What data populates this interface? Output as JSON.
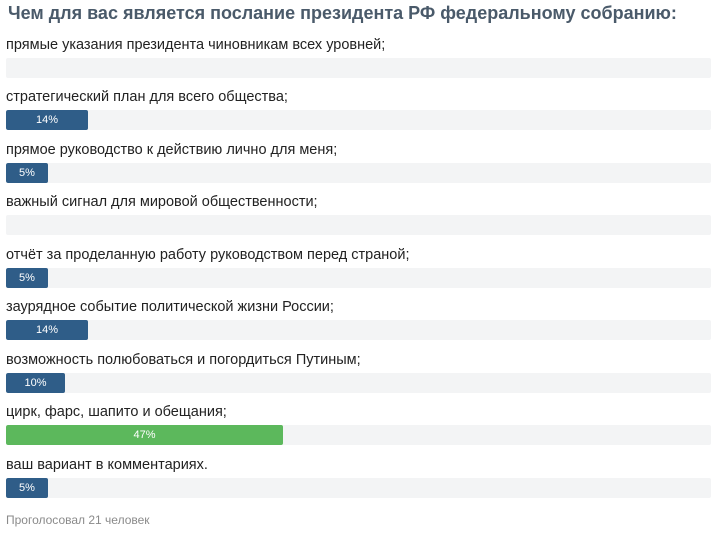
{
  "poll": {
    "title": "Чем для вас является послание президента РФ федеральному собранию:",
    "options": [
      {
        "label": "прямые указания президента чиновникам всех уровней;",
        "percent": 0,
        "percent_label": "",
        "leader": false
      },
      {
        "label": "стратегический план для всего общества;",
        "percent": 14,
        "percent_label": "14%",
        "leader": false
      },
      {
        "label": "прямое руководство к действию лично для меня;",
        "percent": 5,
        "percent_label": "5%",
        "leader": false
      },
      {
        "label": "важный сигнал для мировой общественности;",
        "percent": 0,
        "percent_label": "",
        "leader": false
      },
      {
        "label": "отчёт за проделанную работу руководством перед страной;",
        "percent": 5,
        "percent_label": "5%",
        "leader": false
      },
      {
        "label": "заурядное событие политической жизни России;",
        "percent": 14,
        "percent_label": "14%",
        "leader": false
      },
      {
        "label": "возможность полюбоваться и погордиться Путиным;",
        "percent": 10,
        "percent_label": "10%",
        "leader": false
      },
      {
        "label": "цирк, фарс, шапито и обещания;",
        "percent": 47,
        "percent_label": "47%",
        "leader": true
      },
      {
        "label": "ваш вариант в комментариях.",
        "percent": 5,
        "percent_label": "5%",
        "leader": false
      }
    ],
    "footer": "Проголосовал 21 человек",
    "colors": {
      "title": "#4a5a6a",
      "bar": "#2f5d88",
      "bar_leader": "#5cb85c",
      "track": "#f3f4f5"
    }
  }
}
